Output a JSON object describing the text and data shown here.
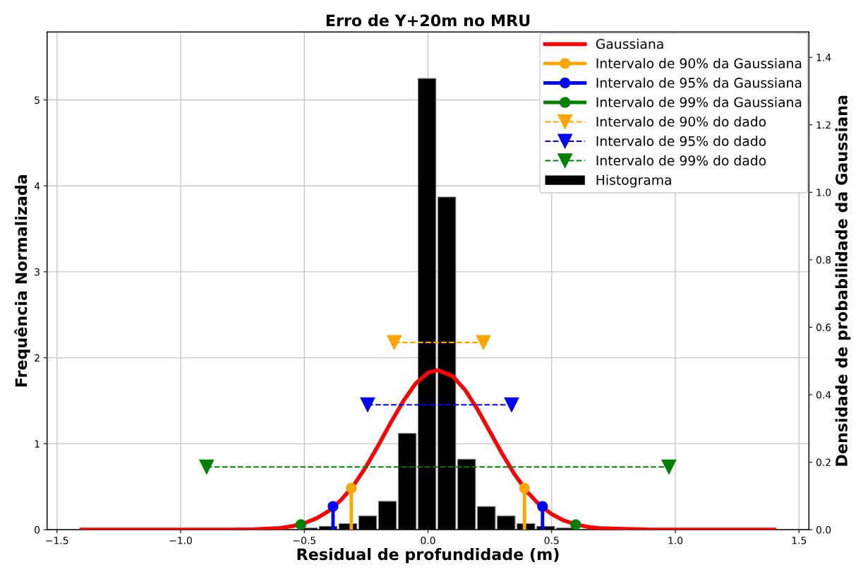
{
  "chart_data": {
    "type": "line",
    "title": "Erro de Y+20m no MRU",
    "xlabel": "Residual de profundidade (m)",
    "ylabel": "Frequência Normalizada",
    "y2label": "Densidade de probabilidade da Gaussiana",
    "xlim": [
      -1.54,
      1.54
    ],
    "xticks": [
      {
        "value": -1.5,
        "label": "−1.5"
      },
      {
        "value": -1.0,
        "label": "−1.0"
      },
      {
        "value": -0.5,
        "label": "−0.5"
      },
      {
        "value": 0,
        "label": "0.0"
      },
      0.5,
      {
        "value": 1,
        "label": "1.0"
      },
      1.5
    ],
    "ylim": [
      0,
      5.79
    ],
    "yticks": [
      0,
      1,
      2,
      3,
      4,
      5
    ],
    "y2lim": [
      0,
      1.475
    ],
    "y2ticks": [
      {
        "value": 0,
        "label": "0.0"
      },
      0.2,
      0.4,
      0.6,
      0.8,
      {
        "value": 1,
        "label": "1.0"
      },
      1.2,
      1.4
    ],
    "grid": true,
    "legend": "top right",
    "series": [
      {
        "name": "Gaussiana",
        "axis": "y2",
        "color": "#ff0000",
        "line_style": "solid",
        "marker": "none",
        "x": [
          -1.4,
          -1.0,
          -0.8,
          -0.7,
          -0.6,
          -0.55,
          -0.5,
          -0.45,
          -0.4,
          -0.35,
          -0.3,
          -0.25,
          -0.2,
          -0.15,
          -0.1,
          -0.05,
          0.0,
          0.04,
          0.1,
          0.15,
          0.2,
          0.25,
          0.3,
          0.35,
          0.4,
          0.45,
          0.5,
          0.55,
          0.6,
          0.65,
          0.7,
          0.9,
          1.4
        ],
        "values": [
          0.0,
          0.0,
          0.0,
          0.001,
          0.005,
          0.01,
          0.019,
          0.034,
          0.056,
          0.089,
          0.132,
          0.187,
          0.251,
          0.318,
          0.381,
          0.433,
          0.465,
          0.473,
          0.455,
          0.414,
          0.357,
          0.291,
          0.225,
          0.164,
          0.113,
          0.074,
          0.046,
          0.027,
          0.015,
          0.008,
          0.004,
          0.0,
          0.0
        ]
      },
      {
        "name": "Intervalo de 90% da Gaussiana",
        "type": "lollipop",
        "axis": "y2",
        "color": "#ffa500",
        "marker": "circle",
        "x": [
          -0.31,
          0.39
        ],
        "values": [
          0.123,
          0.123
        ]
      },
      {
        "name": "Intervalo de 95% da Gaussiana",
        "type": "lollipop",
        "axis": "y2",
        "color": "#0000ff",
        "marker": "circle",
        "x": [
          -0.384,
          0.463
        ],
        "values": [
          0.069,
          0.069
        ]
      },
      {
        "name": "Intervalo de 99% da Gaussiana",
        "type": "lollipop",
        "axis": "y2",
        "color": "#008000",
        "marker": "circle",
        "x": [
          -0.514,
          0.597
        ],
        "values": [
          0.015,
          0.015
        ]
      },
      {
        "name": "Intervalo de 90% do dado",
        "type": "line",
        "axis": "y2",
        "color": "#ffa500",
        "line_style": "dashed",
        "marker": "triangle",
        "x": [
          -0.136,
          0.224
        ],
        "values": [
          0.555,
          0.555
        ]
      },
      {
        "name": "Intervalo de 95% do dado",
        "type": "line",
        "axis": "y2",
        "color": "#0000ff",
        "line_style": "dashed",
        "marker": "triangle",
        "x": [
          -0.244,
          0.338
        ],
        "values": [
          0.37,
          0.37
        ]
      },
      {
        "name": "Intervalo de 99% do dado",
        "type": "line",
        "axis": "y2",
        "color": "#008000",
        "line_style": "dashed",
        "marker": "triangle",
        "x": [
          -0.895,
          0.974
        ],
        "values": [
          0.186,
          0.186
        ]
      },
      {
        "name": "Histograma",
        "type": "histogram",
        "axis": "y",
        "color": "#000000",
        "bins": [
          -0.52,
          -0.44,
          -0.36,
          -0.28,
          -0.2,
          -0.12,
          -0.04,
          0.04,
          0.12,
          0.2,
          0.28,
          0.36,
          0.44,
          0.52,
          0.6
        ],
        "values": [
          0.02,
          0.04,
          0.07,
          0.16,
          0.33,
          1.12,
          5.25,
          3.87,
          0.82,
          0.27,
          0.16,
          0.07,
          0.04,
          0.02
        ]
      }
    ]
  }
}
